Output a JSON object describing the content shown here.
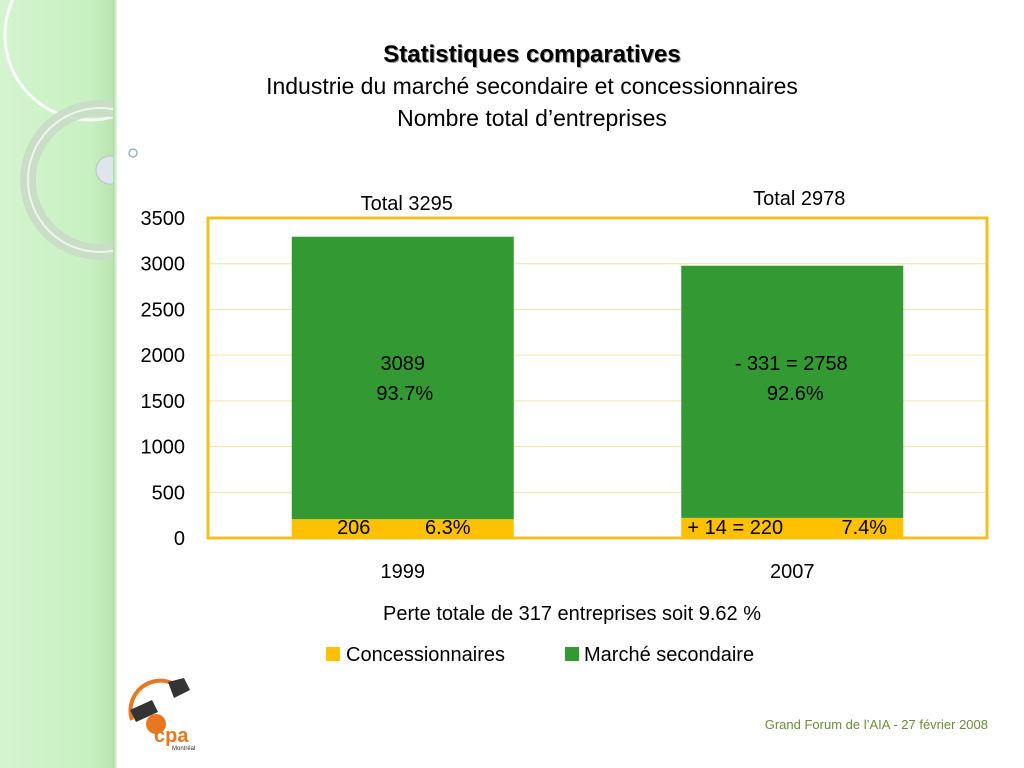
{
  "slide": {
    "title": "Statistiques comparatives",
    "subtitle_1": "Industrie du marché secondaire et concessionnaires",
    "subtitle_2": "Nombre total d’entreprises",
    "footer": "Grand Forum de l’AIA -  27 février 2008",
    "logo_text": "cpa",
    "logo_subtext": "Montréal"
  },
  "colors": {
    "concessionnaires": "#ffc000",
    "marche_secondaire": "#339933",
    "plot_border": "#f0c020",
    "gridline": "#f0e6a0"
  },
  "chart_data": {
    "type": "bar",
    "stacked": true,
    "categories": [
      "1999",
      "2007"
    ],
    "series": [
      {
        "name": "Concessionnaires",
        "values": [
          206,
          220
        ]
      },
      {
        "name": "Marché secondaire",
        "values": [
          3089,
          2758
        ]
      }
    ],
    "totals": [
      3295,
      2978
    ],
    "total_labels": [
      "Total 3295",
      "Total 2978"
    ],
    "data_labels": {
      "Concessionnaires": [
        [
          "206",
          "6.3%"
        ],
        [
          "+ 14 = 220",
          "7.4%"
        ]
      ],
      "Marché secondaire": [
        [
          "3089",
          "93.7%"
        ],
        [
          "- 331 = 2758",
          "92.6%"
        ]
      ]
    },
    "yticks": [
      0,
      500,
      1000,
      1500,
      2000,
      2500,
      3000,
      3500
    ],
    "ylim": [
      0,
      3500
    ],
    "annotation": "Perte totale de 317 entreprises soit 9.62 %",
    "grid": true,
    "legend_position": "bottom"
  }
}
